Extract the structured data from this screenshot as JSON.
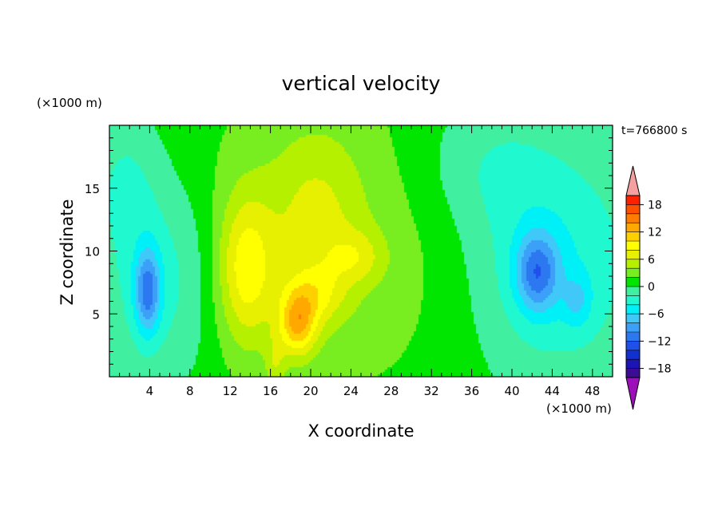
{
  "chart_data": {
    "type": "heatmap",
    "title": "vertical velocity",
    "time_label": "t=766800 s",
    "xlabel": "X coordinate",
    "ylabel": "Z coordinate",
    "x_unit": "(×1000 m)",
    "y_unit": "(×1000 m)",
    "xlim": [
      0,
      50
    ],
    "ylim": [
      0,
      20
    ],
    "x_ticks": [
      4,
      8,
      12,
      16,
      20,
      24,
      28,
      32,
      36,
      40,
      44,
      48
    ],
    "x_tick_labels": [
      "4",
      "8",
      "12",
      "16",
      "20",
      "24",
      "28",
      "32",
      "36",
      "40",
      "44",
      "48"
    ],
    "y_ticks": [
      5,
      10,
      15
    ],
    "y_tick_labels": [
      "5",
      "10",
      "15"
    ],
    "colorbar": {
      "levels": [
        -20,
        -18,
        -16,
        -14,
        -12,
        -10,
        -8,
        -6,
        -4,
        -2,
        0,
        2,
        4,
        6,
        8,
        10,
        12,
        14,
        16,
        18,
        20
      ],
      "colors": [
        "#3c0c94",
        "#1c14b4",
        "#1030d0",
        "#2050ec",
        "#2c78f0",
        "#3ca0f8",
        "#40c8f8",
        "#00f0f8",
        "#20f8d0",
        "#40f0a0",
        "#00e600",
        "#78ee20",
        "#b4f000",
        "#e6f000",
        "#ffff00",
        "#ffd000",
        "#ffa800",
        "#ff7c00",
        "#ff5000",
        "#ff2000"
      ],
      "under_color": "#9b10b8",
      "over_color": "#f4a0a0",
      "tick_values": [
        18,
        12,
        6,
        0,
        -6,
        -12,
        -18
      ],
      "tick_labels": [
        "18",
        "12",
        "6",
        "0",
        "−6",
        "−12",
        "−18"
      ]
    },
    "features": [
      {
        "x": 21.0,
        "z": 11.0,
        "sx": 13.0,
        "sz": 10.0,
        "amp": 3.0
      },
      {
        "x": 20.5,
        "z": 12.5,
        "sx": 3.2,
        "sz": 5.0,
        "amp": 3.5
      },
      {
        "x": 13.5,
        "z": 8.5,
        "sx": 2.0,
        "sz": 4.2,
        "amp": 7.0
      },
      {
        "x": 18.7,
        "z": 4.2,
        "sx": 1.3,
        "sz": 1.8,
        "amp": 9.0
      },
      {
        "x": 20.5,
        "z": 6.5,
        "sx": 2.0,
        "sz": 1.6,
        "amp": 4.0
      },
      {
        "x": 24.5,
        "z": 9.5,
        "sx": 2.0,
        "sz": 1.5,
        "amp": 3.5
      },
      {
        "x": 16.5,
        "z": 1.0,
        "sx": 0.7,
        "sz": 1.6,
        "amp": 3.0
      },
      {
        "x": 5.0,
        "z": 8.0,
        "sx": 4.5,
        "sz": 6.0,
        "amp": -4.5
      },
      {
        "x": 3.8,
        "z": 6.8,
        "sx": 0.9,
        "sz": 2.4,
        "amp": -9.0
      },
      {
        "x": 44.0,
        "z": 9.0,
        "sx": 6.0,
        "sz": 6.5,
        "amp": -5.0
      },
      {
        "x": 42.5,
        "z": 8.3,
        "sx": 1.5,
        "sz": 2.2,
        "amp": -8.5
      },
      {
        "x": 46.5,
        "z": 6.0,
        "sx": 1.0,
        "sz": 1.5,
        "amp": -3.5
      },
      {
        "x": 37.0,
        "z": 17.0,
        "sx": 5.0,
        "sz": 4.0,
        "amp": -2.5
      },
      {
        "x": 1.5,
        "z": 16.0,
        "sx": 2.5,
        "sz": 4.0,
        "amp": -2.5
      }
    ]
  }
}
